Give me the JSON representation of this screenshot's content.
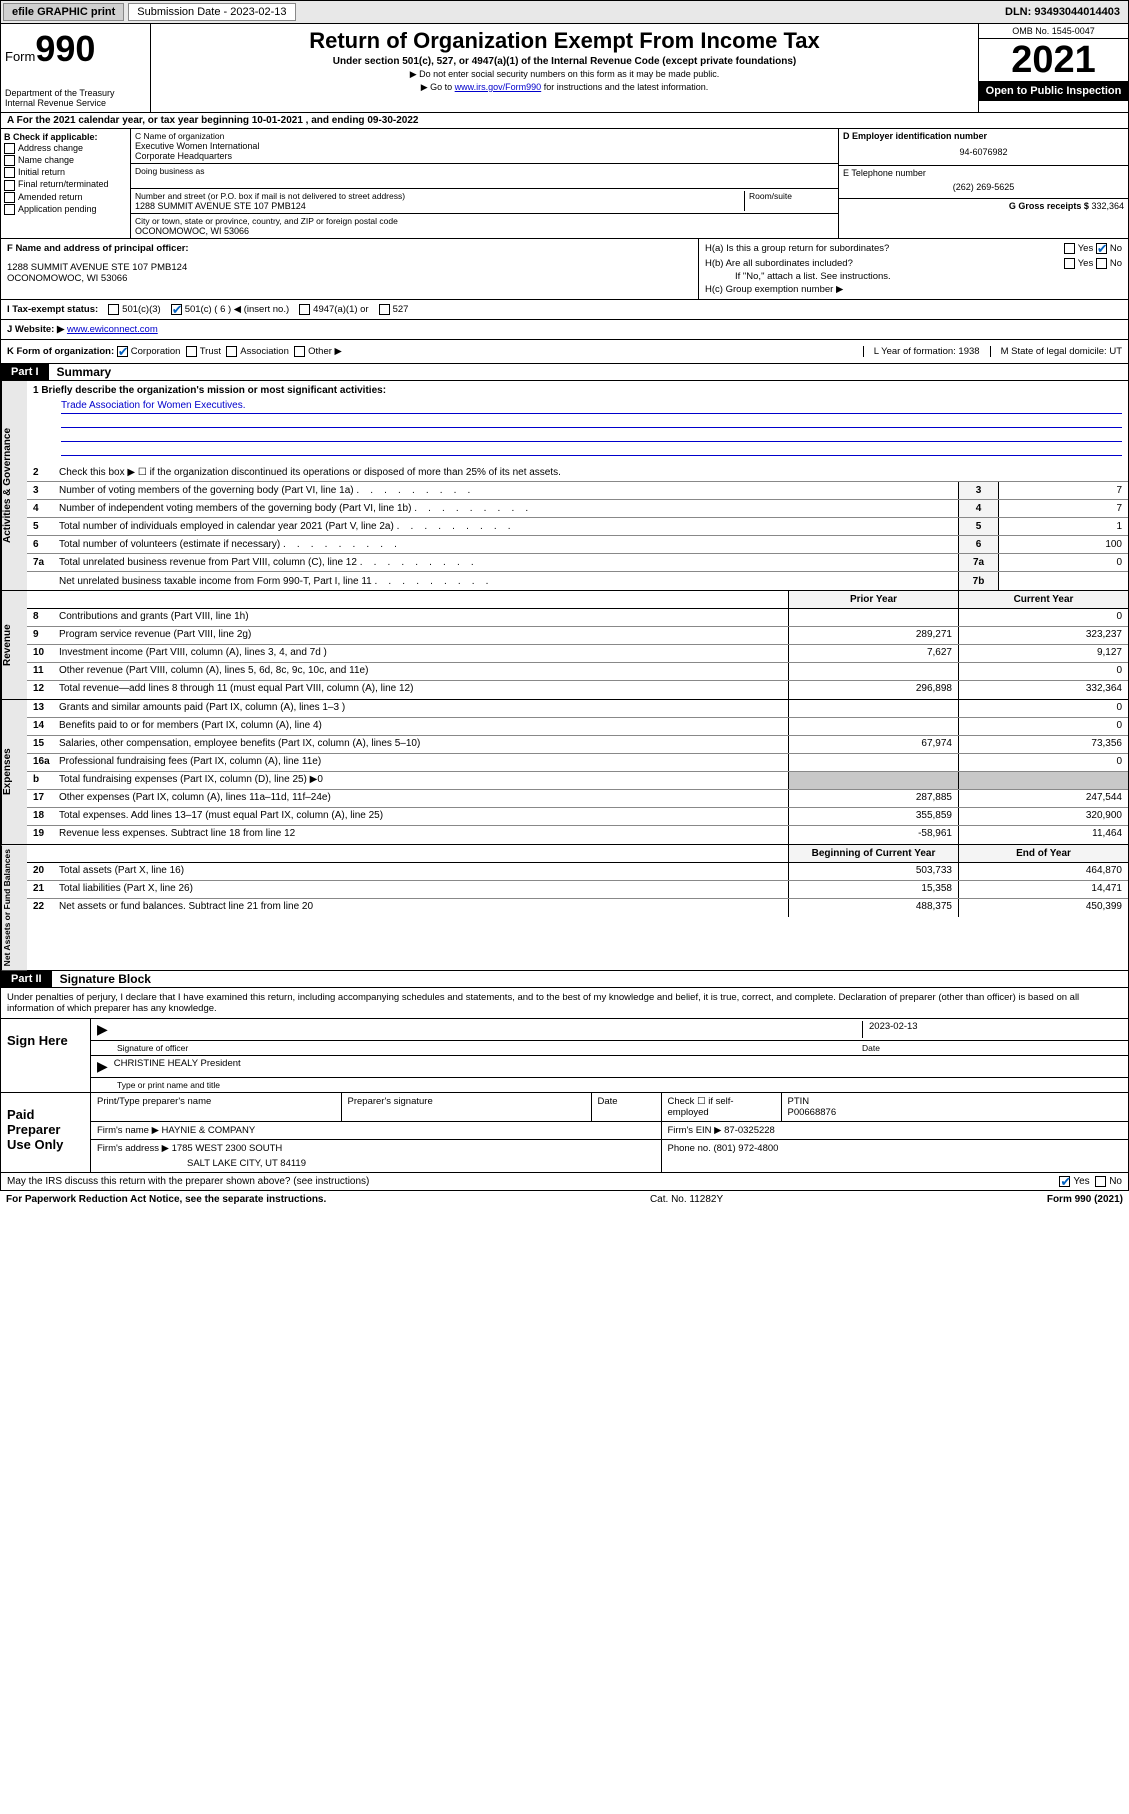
{
  "topbar": {
    "efile": "efile GRAPHIC print",
    "submission_label": "Submission Date - 2023-02-13",
    "dln": "DLN: 93493044014403"
  },
  "header": {
    "form_prefix": "Form",
    "form_number": "990",
    "dept": "Department of the Treasury",
    "irs": "Internal Revenue Service",
    "title": "Return of Organization Exempt From Income Tax",
    "subtitle": "Under section 501(c), 527, or 4947(a)(1) of the Internal Revenue Code (except private foundations)",
    "note1": "▶ Do not enter social security numbers on this form as it may be made public.",
    "note2_pre": "▶ Go to ",
    "note2_link": "www.irs.gov/Form990",
    "note2_post": " for instructions and the latest information.",
    "omb": "OMB No. 1545-0047",
    "year": "2021",
    "inspection": "Open to Public Inspection"
  },
  "period": "A For the 2021 calendar year, or tax year beginning 10-01-2021   , and ending 09-30-2022",
  "sectionB": {
    "heading": "B Check if applicable:",
    "opts": [
      "Address change",
      "Name change",
      "Initial return",
      "Final return/terminated",
      "Amended return",
      "Application pending"
    ]
  },
  "sectionC": {
    "name_label": "C Name of organization",
    "name1": "Executive Women International",
    "name2": "Corporate Headquarters",
    "dba_label": "Doing business as",
    "addr_label": "Number and street (or P.O. box if mail is not delivered to street address)",
    "room_label": "Room/suite",
    "addr": "1288 SUMMIT AVENUE STE 107 PMB124",
    "city_label": "City or town, state or province, country, and ZIP or foreign postal code",
    "city": "OCONOMOWOC, WI  53066"
  },
  "sectionDE": {
    "d_label": "D Employer identification number",
    "ein": "94-6076982",
    "e_label": "E Telephone number",
    "phone": "(262) 269-5625",
    "g_label": "G Gross receipts $",
    "gross": "332,364"
  },
  "sectionF": {
    "label": "F Name and address of principal officer:",
    "line1": "1288 SUMMIT AVENUE STE 107 PMB124",
    "line2": "OCONOMOWOC, WI  53066"
  },
  "sectionH": {
    "ha": "H(a)  Is this a group return for subordinates?",
    "hb": "H(b)  Are all subordinates included?",
    "hb_note": "If \"No,\" attach a list. See instructions.",
    "hc": "H(c)  Group exemption number ▶"
  },
  "sectionI": {
    "label": "I   Tax-exempt status:",
    "o1": "501(c)(3)",
    "o2": "501(c) ( 6 ) ◀ (insert no.)",
    "o3": "4947(a)(1) or",
    "o4": "527"
  },
  "sectionJ": {
    "label": "J   Website: ▶",
    "url": "www.ewiconnect.com"
  },
  "sectionK": {
    "label": "K Form of organization:",
    "opts": [
      "Corporation",
      "Trust",
      "Association",
      "Other ▶"
    ],
    "l": "L Year of formation: 1938",
    "m": "M State of legal domicile: UT"
  },
  "part1": {
    "header": "Part I",
    "title": "Summary",
    "mission_label": "1  Briefly describe the organization's mission or most significant activities:",
    "mission": "Trade Association for Women Executives.",
    "line2": "Check this box ▶ ☐  if the organization discontinued its operations or disposed of more than 25% of its net assets.",
    "governance": [
      {
        "n": "3",
        "d": "Number of voting members of the governing body (Part VI, line 1a)",
        "b": "3",
        "v": "7"
      },
      {
        "n": "4",
        "d": "Number of independent voting members of the governing body (Part VI, line 1b)",
        "b": "4",
        "v": "7"
      },
      {
        "n": "5",
        "d": "Total number of individuals employed in calendar year 2021 (Part V, line 2a)",
        "b": "5",
        "v": "1"
      },
      {
        "n": "6",
        "d": "Total number of volunteers (estimate if necessary)",
        "b": "6",
        "v": "100"
      },
      {
        "n": "7a",
        "d": "Total unrelated business revenue from Part VIII, column (C), line 12",
        "b": "7a",
        "v": "0"
      },
      {
        "n": "",
        "d": "Net unrelated business taxable income from Form 990-T, Part I, line 11",
        "b": "7b",
        "v": ""
      }
    ],
    "col_prior": "Prior Year",
    "col_current": "Current Year",
    "revenue": [
      {
        "n": "8",
        "d": "Contributions and grants (Part VIII, line 1h)",
        "p": "",
        "c": "0"
      },
      {
        "n": "9",
        "d": "Program service revenue (Part VIII, line 2g)",
        "p": "289,271",
        "c": "323,237"
      },
      {
        "n": "10",
        "d": "Investment income (Part VIII, column (A), lines 3, 4, and 7d )",
        "p": "7,627",
        "c": "9,127"
      },
      {
        "n": "11",
        "d": "Other revenue (Part VIII, column (A), lines 5, 6d, 8c, 9c, 10c, and 11e)",
        "p": "",
        "c": "0"
      },
      {
        "n": "12",
        "d": "Total revenue—add lines 8 through 11 (must equal Part VIII, column (A), line 12)",
        "p": "296,898",
        "c": "332,364"
      }
    ],
    "expenses": [
      {
        "n": "13",
        "d": "Grants and similar amounts paid (Part IX, column (A), lines 1–3 )",
        "p": "",
        "c": "0"
      },
      {
        "n": "14",
        "d": "Benefits paid to or for members (Part IX, column (A), line 4)",
        "p": "",
        "c": "0"
      },
      {
        "n": "15",
        "d": "Salaries, other compensation, employee benefits (Part IX, column (A), lines 5–10)",
        "p": "67,974",
        "c": "73,356"
      },
      {
        "n": "16a",
        "d": "Professional fundraising fees (Part IX, column (A), line 11e)",
        "p": "",
        "c": "0"
      },
      {
        "n": "b",
        "d": "Total fundraising expenses (Part IX, column (D), line 25) ▶0",
        "p": "shaded",
        "c": "shaded"
      },
      {
        "n": "17",
        "d": "Other expenses (Part IX, column (A), lines 11a–11d, 11f–24e)",
        "p": "287,885",
        "c": "247,544"
      },
      {
        "n": "18",
        "d": "Total expenses. Add lines 13–17 (must equal Part IX, column (A), line 25)",
        "p": "355,859",
        "c": "320,900"
      },
      {
        "n": "19",
        "d": "Revenue less expenses. Subtract line 18 from line 12",
        "p": "-58,961",
        "c": "11,464"
      }
    ],
    "col_begin": "Beginning of Current Year",
    "col_end": "End of Year",
    "netassets": [
      {
        "n": "20",
        "d": "Total assets (Part X, line 16)",
        "p": "503,733",
        "c": "464,870"
      },
      {
        "n": "21",
        "d": "Total liabilities (Part X, line 26)",
        "p": "15,358",
        "c": "14,471"
      },
      {
        "n": "22",
        "d": "Net assets or fund balances. Subtract line 21 from line 20",
        "p": "488,375",
        "c": "450,399"
      }
    ],
    "vlabels": {
      "gov": "Activities & Governance",
      "rev": "Revenue",
      "exp": "Expenses",
      "net": "Net Assets or Fund Balances"
    }
  },
  "part2": {
    "header": "Part II",
    "title": "Signature Block",
    "intro": "Under penalties of perjury, I declare that I have examined this return, including accompanying schedules and statements, and to the best of my knowledge and belief, it is true, correct, and complete. Declaration of preparer (other than officer) is based on all information of which preparer has any knowledge.",
    "sign_here": "Sign Here",
    "sig_officer": "Signature of officer",
    "sig_date": "2023-02-13",
    "date_label": "Date",
    "officer_name": "CHRISTINE HEALY President",
    "name_label": "Type or print name and title",
    "paid": "Paid Preparer Use Only",
    "prep_name_label": "Print/Type preparer's name",
    "prep_sig_label": "Preparer's signature",
    "prep_date_label": "Date",
    "check_self": "Check ☐ if self-employed",
    "ptin_label": "PTIN",
    "ptin": "P00668876",
    "firm_name_label": "Firm's name    ▶",
    "firm_name": "HAYNIE & COMPANY",
    "firm_ein_label": "Firm's EIN ▶",
    "firm_ein": "87-0325228",
    "firm_addr_label": "Firm's address ▶",
    "firm_addr1": "1785 WEST 2300 SOUTH",
    "firm_addr2": "SALT LAKE CITY, UT  84119",
    "phone_label": "Phone no.",
    "phone": "(801) 972-4800",
    "discuss": "May the IRS discuss this return with the preparer shown above? (see instructions)"
  },
  "footer": {
    "left": "For Paperwork Reduction Act Notice, see the separate instructions.",
    "mid": "Cat. No. 11282Y",
    "right": "Form 990 (2021)"
  }
}
